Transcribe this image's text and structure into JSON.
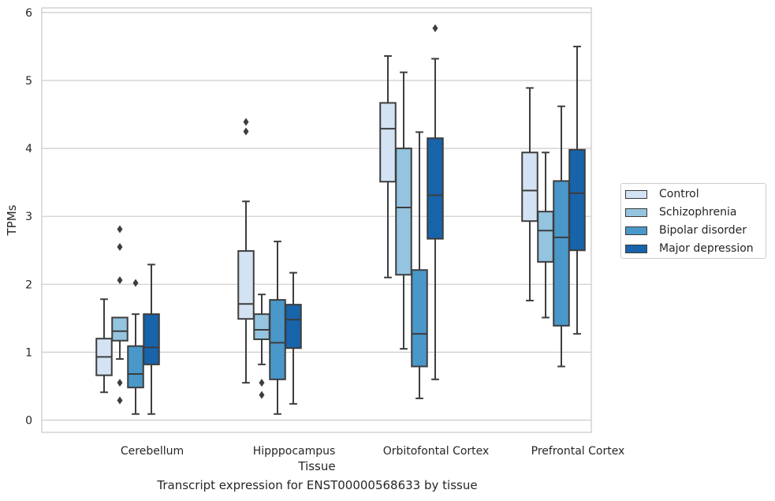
{
  "caption": "Transcript expression for ENST00000568633 by tissue",
  "chart_data": {
    "type": "box",
    "title": "",
    "xlabel": "Tissue",
    "ylabel": "TPMs",
    "ylim": [
      -0.18,
      6.08
    ],
    "yticks": [
      0,
      1,
      2,
      3,
      4,
      5,
      6
    ],
    "grid": true,
    "legend_position": "right",
    "categories": [
      "Cerebellum",
      "Hipppocampus",
      "Orbitofontal Cortex",
      "Prefrontal Cortex"
    ],
    "series": [
      {
        "name": "Control",
        "color": "#d3e3f3",
        "boxes": [
          {
            "whisker_low": 0.41,
            "q1": 0.66,
            "median": 0.93,
            "q3": 1.2,
            "whisker_high": 1.78,
            "outliers": []
          },
          {
            "whisker_low": 0.55,
            "q1": 1.49,
            "median": 1.71,
            "q3": 2.49,
            "whisker_high": 3.22,
            "outliers": [
              4.25,
              4.39
            ]
          },
          {
            "whisker_low": 2.1,
            "q1": 3.51,
            "median": 4.29,
            "q3": 4.67,
            "whisker_high": 5.36,
            "outliers": []
          },
          {
            "whisker_low": 1.76,
            "q1": 2.93,
            "median": 3.38,
            "q3": 3.94,
            "whisker_high": 4.89,
            "outliers": []
          }
        ]
      },
      {
        "name": "Schizophrenia",
        "color": "#94c4df",
        "boxes": [
          {
            "whisker_low": 0.9,
            "q1": 1.17,
            "median": 1.31,
            "q3": 1.51,
            "whisker_high": 1.51,
            "outliers": [
              0.29,
              0.55,
              2.06,
              2.55,
              2.81
            ]
          },
          {
            "whisker_low": 0.82,
            "q1": 1.19,
            "median": 1.33,
            "q3": 1.56,
            "whisker_high": 1.85,
            "outliers": [
              0.37,
              0.55
            ]
          },
          {
            "whisker_low": 1.05,
            "q1": 2.14,
            "median": 3.13,
            "q3": 4.0,
            "whisker_high": 5.12,
            "outliers": []
          },
          {
            "whisker_low": 1.51,
            "q1": 2.33,
            "median": 2.79,
            "q3": 3.07,
            "whisker_high": 3.94,
            "outliers": []
          }
        ]
      },
      {
        "name": "Bipolar disorder",
        "color": "#4a98c9",
        "boxes": [
          {
            "whisker_low": 0.09,
            "q1": 0.48,
            "median": 0.68,
            "q3": 1.09,
            "whisker_high": 1.56,
            "outliers": [
              2.02
            ]
          },
          {
            "whisker_low": 0.09,
            "q1": 0.6,
            "median": 1.14,
            "q3": 1.77,
            "whisker_high": 2.63,
            "outliers": []
          },
          {
            "whisker_low": 0.32,
            "q1": 0.79,
            "median": 1.27,
            "q3": 2.21,
            "whisker_high": 4.24,
            "outliers": []
          },
          {
            "whisker_low": 0.79,
            "q1": 1.39,
            "median": 2.69,
            "q3": 3.52,
            "whisker_high": 4.62,
            "outliers": []
          }
        ]
      },
      {
        "name": "Major depression",
        "color": "#1764ab",
        "boxes": [
          {
            "whisker_low": 0.09,
            "q1": 0.82,
            "median": 1.07,
            "q3": 1.56,
            "whisker_high": 2.29,
            "outliers": []
          },
          {
            "whisker_low": 0.24,
            "q1": 1.06,
            "median": 1.48,
            "q3": 1.7,
            "whisker_high": 2.17,
            "outliers": []
          },
          {
            "whisker_low": 0.6,
            "q1": 2.67,
            "median": 3.31,
            "q3": 4.15,
            "whisker_high": 5.32,
            "outliers": [
              5.77
            ]
          },
          {
            "whisker_low": 1.27,
            "q1": 2.5,
            "median": 3.34,
            "q3": 3.98,
            "whisker_high": 5.5,
            "outliers": []
          }
        ]
      }
    ]
  }
}
